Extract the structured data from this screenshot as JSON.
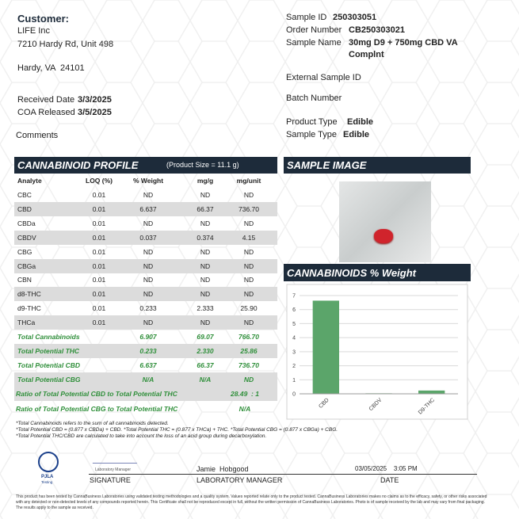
{
  "header": {
    "customer_label": "Customer:",
    "customer_name": "LIFE Inc",
    "address_line1": "7210 Hardy Rd, Unit 498",
    "address_line2": "Hardy, VA  24101",
    "received_date_label": "Received Date",
    "received_date": "3/3/2025",
    "coa_released_label": "COA Released",
    "coa_released": "3/5/2025",
    "comments_label": "Comments"
  },
  "sample_info": {
    "fields": [
      {
        "label": "Sample ID",
        "value": "250303051"
      },
      {
        "label": "Order Number",
        "value": "CB250303021"
      },
      {
        "label": "Sample Name",
        "value": "30mg D9 + 750mg CBD VA Complnt"
      },
      {
        "label": "External Sample ID"
      },
      {
        "label": "Batch Number"
      },
      {
        "label": "Product Type",
        "value": "Edible"
      },
      {
        "label": "Sample Type",
        "value": "Edible"
      }
    ]
  },
  "profile": {
    "title": "CANNABINOID PROFILE",
    "product_size": "(Product Size = 11.1 g)",
    "columns": [
      "Analyte",
      "LOQ (%)",
      "% Weight",
      "mg/g",
      "mg/unit"
    ],
    "rows": [
      [
        "CBC",
        "0.01",
        "ND",
        "ND",
        "ND"
      ],
      [
        "CBD",
        "0.01",
        "6.637",
        "66.37",
        "736.70"
      ],
      [
        "CBDa",
        "0.01",
        "ND",
        "ND",
        "ND"
      ],
      [
        "CBDV",
        "0.01",
        "0.037",
        "0.374",
        "4.15"
      ],
      [
        "CBG",
        "0.01",
        "ND",
        "ND",
        "ND"
      ],
      [
        "CBGa",
        "0.01",
        "ND",
        "ND",
        "ND"
      ],
      [
        "CBN",
        "0.01",
        "ND",
        "ND",
        "ND"
      ],
      [
        "d8-THC",
        "0.01",
        "ND",
        "ND",
        "ND"
      ],
      [
        "d9-THC",
        "0.01",
        "0.233",
        "2.333",
        "25.90"
      ],
      [
        "THCa",
        "0.01",
        "ND",
        "ND",
        "ND"
      ]
    ],
    "totals": [
      [
        "Total Cannabinoids",
        "6.907",
        "69.07",
        "766.70"
      ],
      [
        "Total Potential THC",
        "0.233",
        "2.330",
        "25.86"
      ],
      [
        "Total Potential CBD",
        "6.637",
        "66.37",
        "736.70"
      ],
      [
        "Total Potential CBG",
        "N/A",
        "N/A",
        "ND"
      ]
    ],
    "ratios": [
      [
        "Ratio of Total Potential CBD to Total Potential THC",
        "28.49  : 1"
      ],
      [
        "Ratio of Total Potential CBG to Total Potential THC",
        "N/A"
      ]
    ]
  },
  "sample_image": {
    "title": "SAMPLE IMAGE"
  },
  "chart_data": {
    "type": "bar",
    "title": "CANNABINOIDS % Weight",
    "categories": [
      "CBD",
      "CBDV",
      "D9-THC"
    ],
    "values": [
      6.637,
      0.037,
      0.233
    ],
    "color": "#5ba56a",
    "ylim": [
      0,
      7
    ],
    "yticks": [
      0,
      1,
      2,
      3,
      4,
      5,
      6,
      7
    ],
    "grid": true
  },
  "footnotes": [
    "*Total Cannabinoids refers to the sum of all cannabinoids detected.",
    "*Total Potential CBD = (0.877 x CBDa) + CBD. *Total Potential THC = (0.877 x THCa) + THC. *Total Potential CBG = (0.877 x CBGa) + CBG.",
    "*Total Potential THC/CBD are calculated to take into account the loss of an acid group during decarboxylation."
  ],
  "signature": {
    "logo_text": "PJLA",
    "logo_subtext": "Testing",
    "signature_caption": "Laboratory Manager",
    "name": "Jamie  Hobgood",
    "datetime": "03/05/2025    3:05 PM",
    "signature_label": "SIGNATURE",
    "title_label": "LABORATORY MANAGER",
    "date_label": "DATE"
  },
  "disclaimer": "This product has been tested by CannaBusiness Laboratories using validated testing methodologies and a quality system. Values reported relate only to the product tested. CannaBusiness Laboratories makes no claims as to the efficacy, safety, or other risks associated with any detected or non-detected levels of any compounds reported herein. This Certificate shall not be reproduced except in full, without the written permission of CannaBusiness Laboratories. Photo is of sample received by the lab and may vary from final packaging. The results apply to the sample as received."
}
